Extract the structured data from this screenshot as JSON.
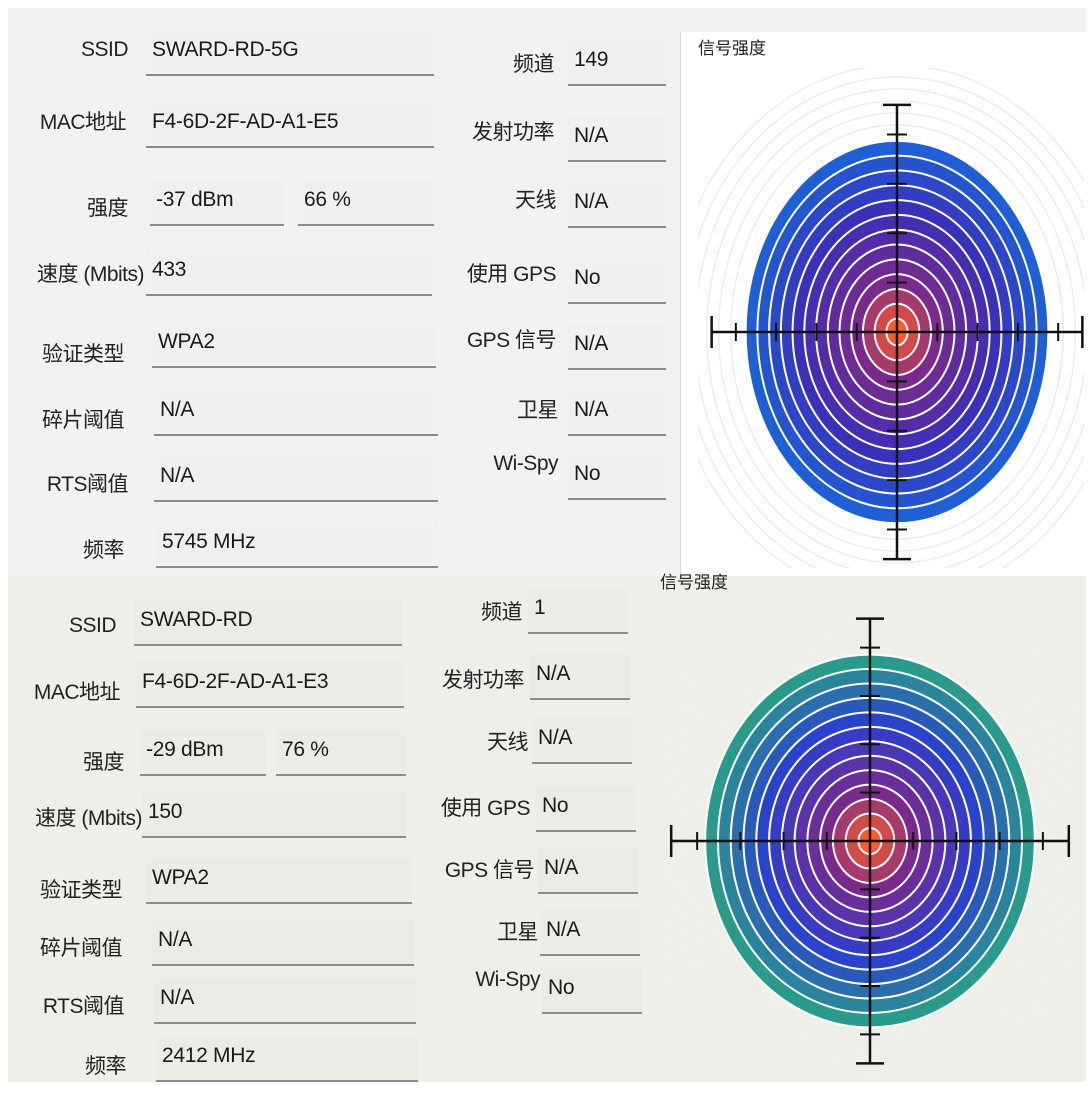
{
  "panels": [
    {
      "labels": {
        "ssid": "SSID",
        "mac": "MAC地址",
        "strength": "强度",
        "speed": "速度 (Mbits)",
        "auth": "验证类型",
        "frag": "碎片阈值",
        "rts": "RTS阈值",
        "freq": "频率",
        "channel": "频道",
        "tx_power": "发射功率",
        "antenna": "天线",
        "use_gps": "使用 GPS",
        "gps_signal": "GPS 信号",
        "satellite": "卫星",
        "wispy": "Wi-Spy"
      },
      "values": {
        "ssid": "SWARD-RD-5G",
        "mac": "F4-6D-2F-AD-A1-E5",
        "dbm": "-37 dBm",
        "percent": "66 %",
        "speed": "433",
        "auth": "WPA2",
        "frag": "N/A",
        "rts": "N/A",
        "freq": "5745 MHz",
        "channel": "149",
        "tx_power": "N/A",
        "antenna": "N/A",
        "use_gps": "No",
        "gps_signal": "N/A",
        "satellite": "N/A",
        "wispy": "No"
      },
      "radar": {
        "title": "信号强度",
        "signal_percent": 66,
        "colors": {
          "outer": "#1f5fd6",
          "mid": "#3a2fb8",
          "inner": "#7a2a8a",
          "core": "#ff5a2a"
        }
      }
    },
    {
      "labels": {
        "ssid": "SSID",
        "mac": "MAC地址",
        "strength": "强度",
        "speed": "速度 (Mbits)",
        "auth": "验证类型",
        "frag": "碎片阈值",
        "rts": "RTS阈值",
        "freq": "频率",
        "channel": "频道",
        "tx_power": "发射功率",
        "antenna": "天线",
        "use_gps": "使用 GPS",
        "gps_signal": "GPS 信号",
        "satellite": "卫星",
        "wispy": "Wi-Spy"
      },
      "values": {
        "ssid": "SWARD-RD",
        "mac": "F4-6D-2F-AD-A1-E3",
        "dbm": "-29 dBm",
        "percent": "76 %",
        "speed": "150",
        "auth": "WPA2",
        "frag": "N/A",
        "rts": "N/A",
        "freq": "2412 MHz",
        "channel": "1",
        "tx_power": "N/A",
        "antenna": "N/A",
        "use_gps": "No",
        "gps_signal": "N/A",
        "satellite": "N/A",
        "wispy": "No"
      },
      "radar": {
        "title": "信号强度",
        "signal_percent": 76,
        "colors": {
          "outer": "#2a9a8a",
          "mid": "#2a3fd0",
          "inner": "#7a2a8a",
          "core": "#ff5a2a"
        }
      }
    }
  ]
}
